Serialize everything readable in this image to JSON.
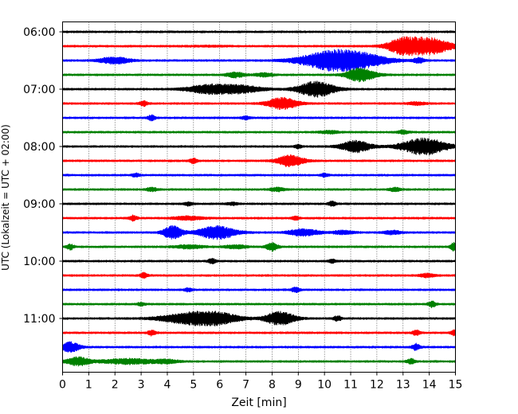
{
  "chart_data": {
    "type": "line",
    "title": "",
    "xlabel": "Zeit  [min]",
    "ylabel": "UTC (Lokalzeit = UTC + 02:00)",
    "xlim": [
      0,
      15
    ],
    "x_ticks": [
      0,
      1,
      2,
      3,
      4,
      5,
      6,
      7,
      8,
      9,
      10,
      11,
      12,
      13,
      14,
      15
    ],
    "grid": "vertical dotted",
    "trace_interval_minutes": 15,
    "row_labels": [
      "06:00",
      "07:00",
      "08:00",
      "09:00",
      "10:00",
      "11:00"
    ],
    "row_label_every": 4,
    "trace_colors": [
      "#000000",
      "#ff0000",
      "#0000ff",
      "#008000"
    ],
    "traces": [
      {
        "start": "06:00",
        "color": "#000000",
        "events": []
      },
      {
        "start": "06:15",
        "color": "#ff0000",
        "events": [
          [
            5.5,
            0.5,
            1.0
          ],
          [
            12.95,
            8,
            0.8
          ],
          [
            13.95,
            10,
            1.2
          ]
        ]
      },
      {
        "start": "06:30",
        "color": "#0000ff",
        "events": [
          [
            2.0,
            4,
            0.8
          ],
          [
            10.4,
            12,
            1.8
          ],
          [
            11.6,
            4,
            1.5
          ],
          [
            13.6,
            3,
            0.3
          ]
        ]
      },
      {
        "start": "06:45",
        "color": "#008000",
        "events": [
          [
            6.6,
            3,
            0.5
          ],
          [
            7.7,
            2,
            0.5
          ],
          [
            11.2,
            4,
            0.6
          ],
          [
            11.5,
            5,
            0.8
          ]
        ]
      },
      {
        "start": "07:00",
        "color": "#000000",
        "events": [
          [
            5.6,
            5,
            1.2
          ],
          [
            6.8,
            4,
            1.2
          ],
          [
            9.7,
            9,
            1.0
          ]
        ]
      },
      {
        "start": "07:15",
        "color": "#ff0000",
        "events": [
          [
            3.1,
            3,
            0.2
          ],
          [
            8.4,
            7,
            0.8
          ],
          [
            13.5,
            1.5,
            0.5
          ]
        ]
      },
      {
        "start": "07:30",
        "color": "#0000ff",
        "events": [
          [
            3.4,
            3,
            0.2
          ],
          [
            7.0,
            2,
            0.2
          ]
        ]
      },
      {
        "start": "07:45",
        "color": "#008000",
        "events": [
          [
            10.2,
            1.5,
            0.5
          ],
          [
            13.0,
            2,
            0.3
          ]
        ]
      },
      {
        "start": "08:00",
        "color": "#000000",
        "events": [
          [
            9.0,
            2,
            0.2
          ],
          [
            11.2,
            7,
            0.8
          ],
          [
            13.8,
            10,
            1.2
          ]
        ]
      },
      {
        "start": "08:15",
        "color": "#ff0000",
        "events": [
          [
            5.0,
            3,
            0.2
          ],
          [
            8.7,
            7,
            0.7
          ]
        ]
      },
      {
        "start": "08:30",
        "color": "#0000ff",
        "events": [
          [
            2.8,
            2,
            0.2
          ],
          [
            10.0,
            2,
            0.2
          ]
        ]
      },
      {
        "start": "08:45",
        "color": "#008000",
        "events": [
          [
            3.4,
            2,
            0.3
          ],
          [
            8.2,
            2,
            0.4
          ],
          [
            12.7,
            2,
            0.3
          ]
        ]
      },
      {
        "start": "09:00",
        "color": "#000000",
        "events": [
          [
            4.8,
            2,
            0.2
          ],
          [
            6.5,
            1.5,
            0.3
          ],
          [
            10.3,
            3,
            0.2
          ]
        ]
      },
      {
        "start": "09:15",
        "color": "#ff0000",
        "events": [
          [
            2.7,
            3,
            0.2
          ],
          [
            4.8,
            2,
            0.8
          ],
          [
            8.9,
            2,
            0.2
          ]
        ]
      },
      {
        "start": "09:30",
        "color": "#0000ff",
        "events": [
          [
            4.2,
            8,
            0.5
          ],
          [
            5.9,
            8,
            1.0
          ],
          [
            9.2,
            4,
            0.8
          ],
          [
            10.7,
            2,
            0.6
          ],
          [
            12.6,
            2,
            0.5
          ]
        ]
      },
      {
        "start": "09:45",
        "color": "#008000",
        "events": [
          [
            0.3,
            3,
            0.2
          ],
          [
            4.8,
            2,
            0.8
          ],
          [
            6.6,
            2,
            0.6
          ],
          [
            8.0,
            5,
            0.3
          ],
          [
            14.95,
            5,
            0.2
          ]
        ]
      },
      {
        "start": "10:00",
        "color": "#000000",
        "events": [
          [
            5.7,
            3,
            0.2
          ],
          [
            10.3,
            2,
            0.2
          ]
        ]
      },
      {
        "start": "10:15",
        "color": "#ff0000",
        "events": [
          [
            3.1,
            3,
            0.2
          ],
          [
            13.9,
            2,
            0.4
          ]
        ]
      },
      {
        "start": "10:30",
        "color": "#0000ff",
        "events": [
          [
            4.8,
            2,
            0.2
          ],
          [
            8.9,
            3,
            0.2
          ]
        ]
      },
      {
        "start": "10:45",
        "color": "#008000",
        "events": [
          [
            3.0,
            2,
            0.2
          ],
          [
            14.1,
            4,
            0.2
          ]
        ]
      },
      {
        "start": "11:00",
        "color": "#000000",
        "events": [
          [
            4.8,
            6,
            1.5
          ],
          [
            5.9,
            6,
            1.2
          ],
          [
            8.3,
            8,
            0.8
          ],
          [
            10.5,
            3,
            0.2
          ]
        ]
      },
      {
        "start": "11:15",
        "color": "#ff0000",
        "events": [
          [
            3.4,
            3,
            0.2
          ],
          [
            13.5,
            3,
            0.2
          ],
          [
            14.95,
            3,
            0.2
          ]
        ]
      },
      {
        "start": "11:30",
        "color": "#0000ff",
        "events": [
          [
            0.3,
            6,
            0.5
          ],
          [
            13.5,
            4,
            0.2
          ]
        ]
      },
      {
        "start": "11:45",
        "color": "#008000",
        "events": [
          [
            0.6,
            5,
            0.6
          ],
          [
            2.5,
            3,
            1.5
          ],
          [
            4.0,
            2,
            0.6
          ],
          [
            13.3,
            3,
            0.2
          ]
        ]
      }
    ]
  }
}
